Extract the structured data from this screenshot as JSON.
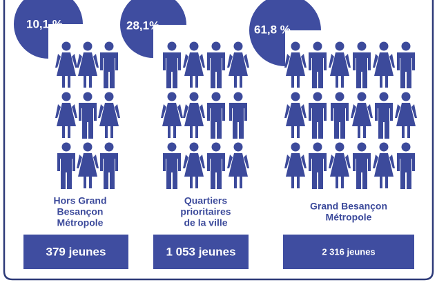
{
  "groups": [
    {
      "percent": "10,1  %",
      "label": [
        "Hors Grand",
        "Besançon",
        "Métropole"
      ],
      "count": "379 jeunes"
    },
    {
      "percent": "28,1%",
      "label": [
        "Quartiers",
        "prioritaires",
        "de la ville"
      ],
      "count": "1 053 jeunes"
    },
    {
      "percent": "61,8 %",
      "label": [
        "Grand Besançon",
        "Métropole"
      ],
      "count": "2 316 jeunes"
    }
  ]
}
